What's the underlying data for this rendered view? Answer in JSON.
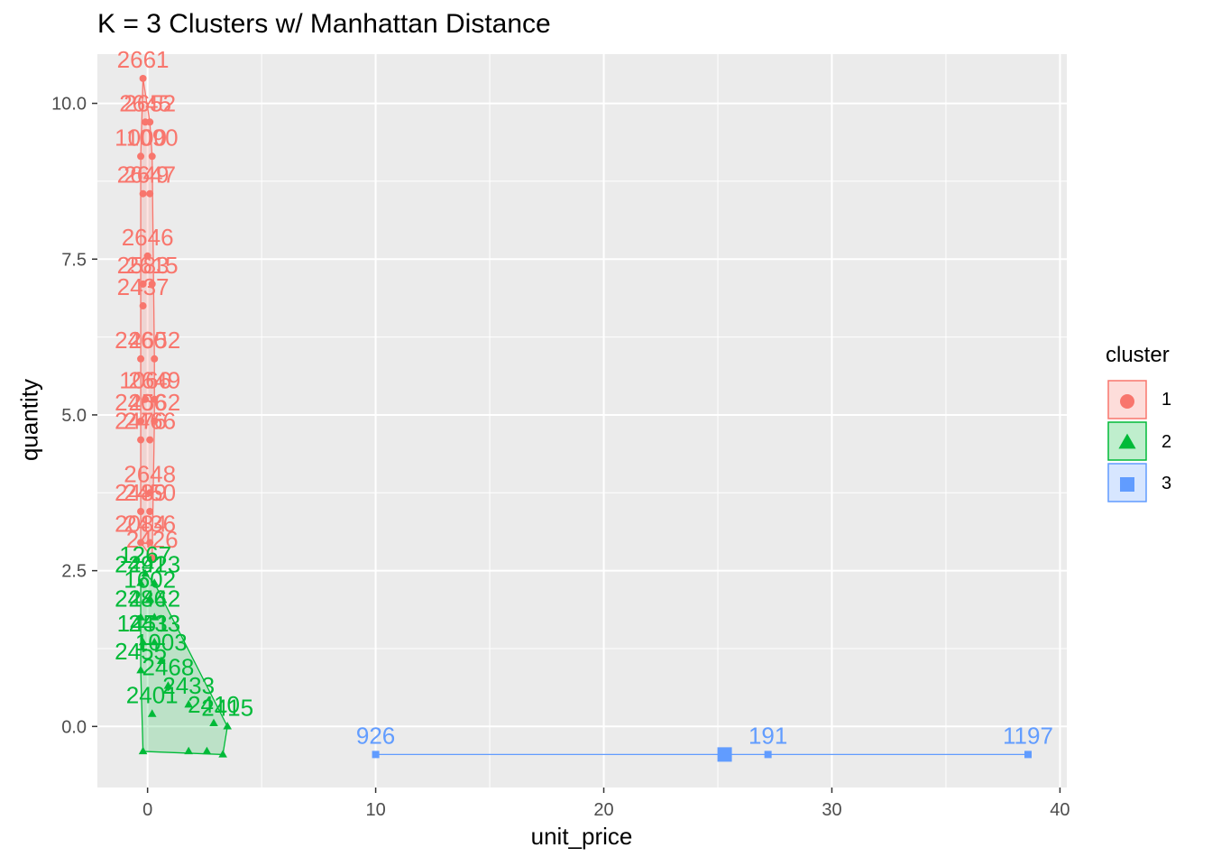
{
  "chart_data": {
    "type": "scatter",
    "title": "K = 3 Clusters w/ Manhattan Distance",
    "xlabel": "unit_price",
    "ylabel": "quantity",
    "xlim": [
      -2.2,
      40.3
    ],
    "ylim": [
      -0.98,
      10.79
    ],
    "x_ticks": [
      0,
      10,
      20,
      30,
      40
    ],
    "x_tick_labels": [
      "0",
      "10",
      "20",
      "30",
      "40"
    ],
    "y_ticks": [
      0.0,
      2.5,
      5.0,
      7.5,
      10.0
    ],
    "y_tick_labels": [
      "0.0",
      "2.5",
      "5.0",
      "7.5",
      "10.0"
    ],
    "grid": true,
    "legend": {
      "title": "cluster",
      "position": "right",
      "entries": [
        "1",
        "2",
        "3"
      ]
    },
    "colors": {
      "1": "#F8766D",
      "2": "#00BA38",
      "3": "#619CFF",
      "panel": "#EBEBEB",
      "grid": "#FFFFFF"
    },
    "series": [
      {
        "name": "1",
        "shape": "circle",
        "points": [
          {
            "x": -0.2,
            "y": 10.4,
            "label": "2661"
          },
          {
            "x": -0.1,
            "y": 9.7,
            "label": "2645"
          },
          {
            "x": 0.1,
            "y": 9.7,
            "label": "2652"
          },
          {
            "x": -0.3,
            "y": 9.15,
            "label": "1000"
          },
          {
            "x": 0.2,
            "y": 9.15,
            "label": "1090"
          },
          {
            "x": -0.2,
            "y": 8.55,
            "label": "2649"
          },
          {
            "x": 0.1,
            "y": 8.55,
            "label": "2647"
          },
          {
            "x": 0.0,
            "y": 7.55,
            "label": "2646"
          },
          {
            "x": -0.2,
            "y": 7.1,
            "label": "2583"
          },
          {
            "x": 0.2,
            "y": 7.1,
            "label": "2615"
          },
          {
            "x": -0.2,
            "y": 6.75,
            "label": "2437"
          },
          {
            "x": -0.3,
            "y": 5.9,
            "label": "2460"
          },
          {
            "x": 0.3,
            "y": 5.9,
            "label": "2652"
          },
          {
            "x": -0.1,
            "y": 5.25,
            "label": "1066"
          },
          {
            "x": 0.3,
            "y": 5.25,
            "label": "2649"
          },
          {
            "x": -0.3,
            "y": 4.9,
            "label": "2406"
          },
          {
            "x": 0.3,
            "y": 4.9,
            "label": "2562"
          },
          {
            "x": -0.3,
            "y": 4.6,
            "label": "2476"
          },
          {
            "x": 0.1,
            "y": 4.6,
            "label": "2466"
          },
          {
            "x": 0.1,
            "y": 3.75,
            "label": "2648"
          },
          {
            "x": -0.3,
            "y": 3.45,
            "label": "2489"
          },
          {
            "x": 0.1,
            "y": 3.45,
            "label": "2450"
          },
          {
            "x": -0.3,
            "y": 2.95,
            "label": "2084"
          },
          {
            "x": 0.1,
            "y": 2.95,
            "label": "2436"
          },
          {
            "x": 0.2,
            "y": 2.7,
            "label": "2426"
          }
        ]
      },
      {
        "name": "2",
        "shape": "triangle",
        "points": [
          {
            "x": -0.1,
            "y": 2.45,
            "label": "1267"
          },
          {
            "x": -0.3,
            "y": 2.3,
            "label": "2491"
          },
          {
            "x": 0.3,
            "y": 2.3,
            "label": "2423"
          },
          {
            "x": 0.1,
            "y": 2.05,
            "label": "1602"
          },
          {
            "x": -0.3,
            "y": 1.75,
            "label": "2486"
          },
          {
            "x": 0.3,
            "y": 1.75,
            "label": "2442"
          },
          {
            "x": -0.2,
            "y": 1.35,
            "label": "1451"
          },
          {
            "x": 0.3,
            "y": 1.35,
            "label": "2433"
          },
          {
            "x": 0.6,
            "y": 1.05,
            "label": "1003"
          },
          {
            "x": -0.3,
            "y": 0.9,
            "label": "2455"
          },
          {
            "x": 0.9,
            "y": 0.65,
            "label": "2468"
          },
          {
            "x": 1.8,
            "y": 0.35,
            "label": "2433"
          },
          {
            "x": 2.9,
            "y": 0.05,
            "label": "2410"
          },
          {
            "x": 3.5,
            "y": 0.0,
            "label": "2415"
          },
          {
            "x": 0.2,
            "y": 0.2,
            "label": "2401"
          },
          {
            "x": -0.2,
            "y": -0.4,
            "label": ""
          },
          {
            "x": 1.8,
            "y": -0.4,
            "label": ""
          },
          {
            "x": 2.6,
            "y": -0.4,
            "label": ""
          },
          {
            "x": 3.3,
            "y": -0.45,
            "label": ""
          }
        ]
      },
      {
        "name": "3",
        "shape": "square",
        "points": [
          {
            "x": 10.0,
            "y": -0.45,
            "label": "926"
          },
          {
            "x": 27.2,
            "y": -0.45,
            "label": "191"
          },
          {
            "x": 38.6,
            "y": -0.45,
            "label": "1197"
          }
        ],
        "centroid": {
          "x": 25.3,
          "y": -0.45
        }
      }
    ]
  }
}
